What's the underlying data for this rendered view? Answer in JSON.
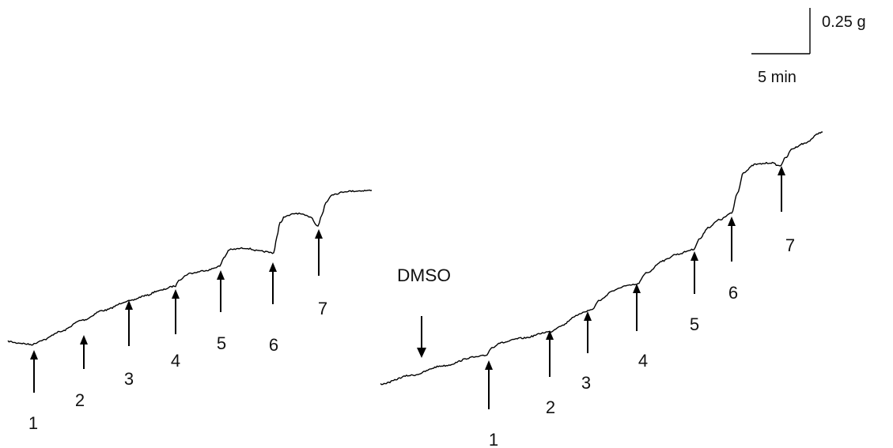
{
  "scale_bar": {
    "force_label": "0.25 g",
    "time_label": "5 min"
  },
  "vehicle": {
    "label": "DMSO"
  },
  "panel_left": {
    "additions": [
      "1",
      "2",
      "3",
      "4",
      "5",
      "6",
      "7"
    ]
  },
  "panel_right": {
    "additions": [
      "1",
      "2",
      "3",
      "4",
      "5",
      "6",
      "7"
    ]
  }
}
